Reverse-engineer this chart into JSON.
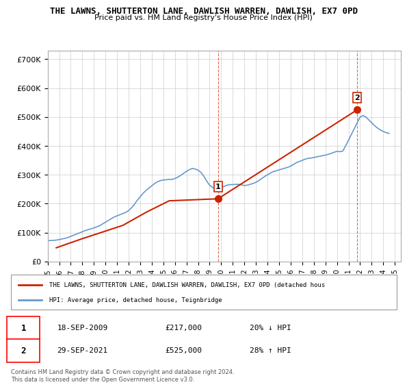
{
  "title": "THE LAWNS, SHUTTERTON LANE, DAWLISH WARREN, DAWLISH, EX7 0PD",
  "subtitle": "Price paid vs. HM Land Registry's House Price Index (HPI)",
  "ylabel_ticks": [
    "£0",
    "£100K",
    "£200K",
    "£300K",
    "£400K",
    "£500K",
    "£600K",
    "£700K"
  ],
  "ytick_vals": [
    0,
    100000,
    200000,
    300000,
    400000,
    500000,
    600000,
    700000
  ],
  "ylim": [
    0,
    730000
  ],
  "xlim_start": 1995.0,
  "xlim_end": 2025.5,
  "xtick_years": [
    1995,
    1996,
    1997,
    1998,
    1999,
    2000,
    2001,
    2002,
    2003,
    2004,
    2005,
    2006,
    2007,
    2008,
    2009,
    2010,
    2011,
    2012,
    2013,
    2014,
    2015,
    2016,
    2017,
    2018,
    2019,
    2020,
    2021,
    2022,
    2023,
    2024,
    2025
  ],
  "hpi_color": "#6699cc",
  "price_color": "#cc2200",
  "marker1_x": 2009.72,
  "marker1_y": 217000,
  "marker2_x": 2021.75,
  "marker2_y": 525000,
  "marker1_label": "1",
  "marker2_label": "2",
  "vline1_x": 2009.72,
  "vline2_x": 2021.75,
  "legend_line1": "THE LAWNS, SHUTTERTON LANE, DAWLISH WARREN, DAWLISH, EX7 0PD (detached hous",
  "legend_line2": "HPI: Average price, detached house, Teignbridge",
  "annotation1_num": "1",
  "annotation1_date": "18-SEP-2009",
  "annotation1_price": "£217,000",
  "annotation1_hpi": "20% ↓ HPI",
  "annotation2_num": "2",
  "annotation2_date": "29-SEP-2021",
  "annotation2_price": "£525,000",
  "annotation2_hpi": "28% ↑ HPI",
  "footer": "Contains HM Land Registry data © Crown copyright and database right 2024.\nThis data is licensed under the Open Government Licence v3.0.",
  "hpi_data_x": [
    1995.0,
    1995.25,
    1995.5,
    1995.75,
    1996.0,
    1996.25,
    1996.5,
    1996.75,
    1997.0,
    1997.25,
    1997.5,
    1997.75,
    1998.0,
    1998.25,
    1998.5,
    1998.75,
    1999.0,
    1999.25,
    1999.5,
    1999.75,
    2000.0,
    2000.25,
    2000.5,
    2000.75,
    2001.0,
    2001.25,
    2001.5,
    2001.75,
    2002.0,
    2002.25,
    2002.5,
    2002.75,
    2003.0,
    2003.25,
    2003.5,
    2003.75,
    2004.0,
    2004.25,
    2004.5,
    2004.75,
    2005.0,
    2005.25,
    2005.5,
    2005.75,
    2006.0,
    2006.25,
    2006.5,
    2006.75,
    2007.0,
    2007.25,
    2007.5,
    2007.75,
    2008.0,
    2008.25,
    2008.5,
    2008.75,
    2009.0,
    2009.25,
    2009.5,
    2009.75,
    2010.0,
    2010.25,
    2010.5,
    2010.75,
    2011.0,
    2011.25,
    2011.5,
    2011.75,
    2012.0,
    2012.25,
    2012.5,
    2012.75,
    2013.0,
    2013.25,
    2013.5,
    2013.75,
    2014.0,
    2014.25,
    2014.5,
    2014.75,
    2015.0,
    2015.25,
    2015.5,
    2015.75,
    2016.0,
    2016.25,
    2016.5,
    2016.75,
    2017.0,
    2017.25,
    2017.5,
    2017.75,
    2018.0,
    2018.25,
    2018.5,
    2018.75,
    2019.0,
    2019.25,
    2019.5,
    2019.75,
    2020.0,
    2020.25,
    2020.5,
    2020.75,
    2021.0,
    2021.25,
    2021.5,
    2021.75,
    2022.0,
    2022.25,
    2022.5,
    2022.75,
    2023.0,
    2023.25,
    2023.5,
    2023.75,
    2024.0,
    2024.25,
    2024.5
  ],
  "hpi_data_y": [
    72000,
    72500,
    73000,
    74000,
    76000,
    78000,
    80000,
    83000,
    87000,
    91000,
    95000,
    99000,
    103000,
    107000,
    110000,
    113000,
    116000,
    120000,
    124000,
    130000,
    136000,
    142000,
    148000,
    154000,
    158000,
    162000,
    166000,
    170000,
    176000,
    186000,
    198000,
    212000,
    224000,
    236000,
    246000,
    254000,
    262000,
    270000,
    276000,
    280000,
    282000,
    283000,
    284000,
    284000,
    287000,
    292000,
    298000,
    305000,
    312000,
    318000,
    322000,
    320000,
    316000,
    308000,
    295000,
    278000,
    264000,
    256000,
    252000,
    252000,
    255000,
    260000,
    264000,
    266000,
    266000,
    267000,
    267000,
    265000,
    263000,
    264000,
    267000,
    270000,
    274000,
    280000,
    287000,
    294000,
    300000,
    306000,
    311000,
    314000,
    317000,
    320000,
    323000,
    326000,
    330000,
    336000,
    342000,
    346000,
    350000,
    354000,
    357000,
    358000,
    360000,
    362000,
    364000,
    366000,
    368000,
    371000,
    374000,
    378000,
    381000,
    380000,
    382000,
    400000,
    420000,
    440000,
    460000,
    480000,
    500000,
    505000,
    500000,
    490000,
    480000,
    470000,
    462000,
    455000,
    450000,
    446000,
    443000
  ],
  "price_data_x": [
    1995.75,
    1998.0,
    2001.5,
    2003.5,
    2005.5,
    2009.72,
    2021.75
  ],
  "price_data_y": [
    47500,
    79000,
    125000,
    170000,
    210000,
    217000,
    525000
  ]
}
